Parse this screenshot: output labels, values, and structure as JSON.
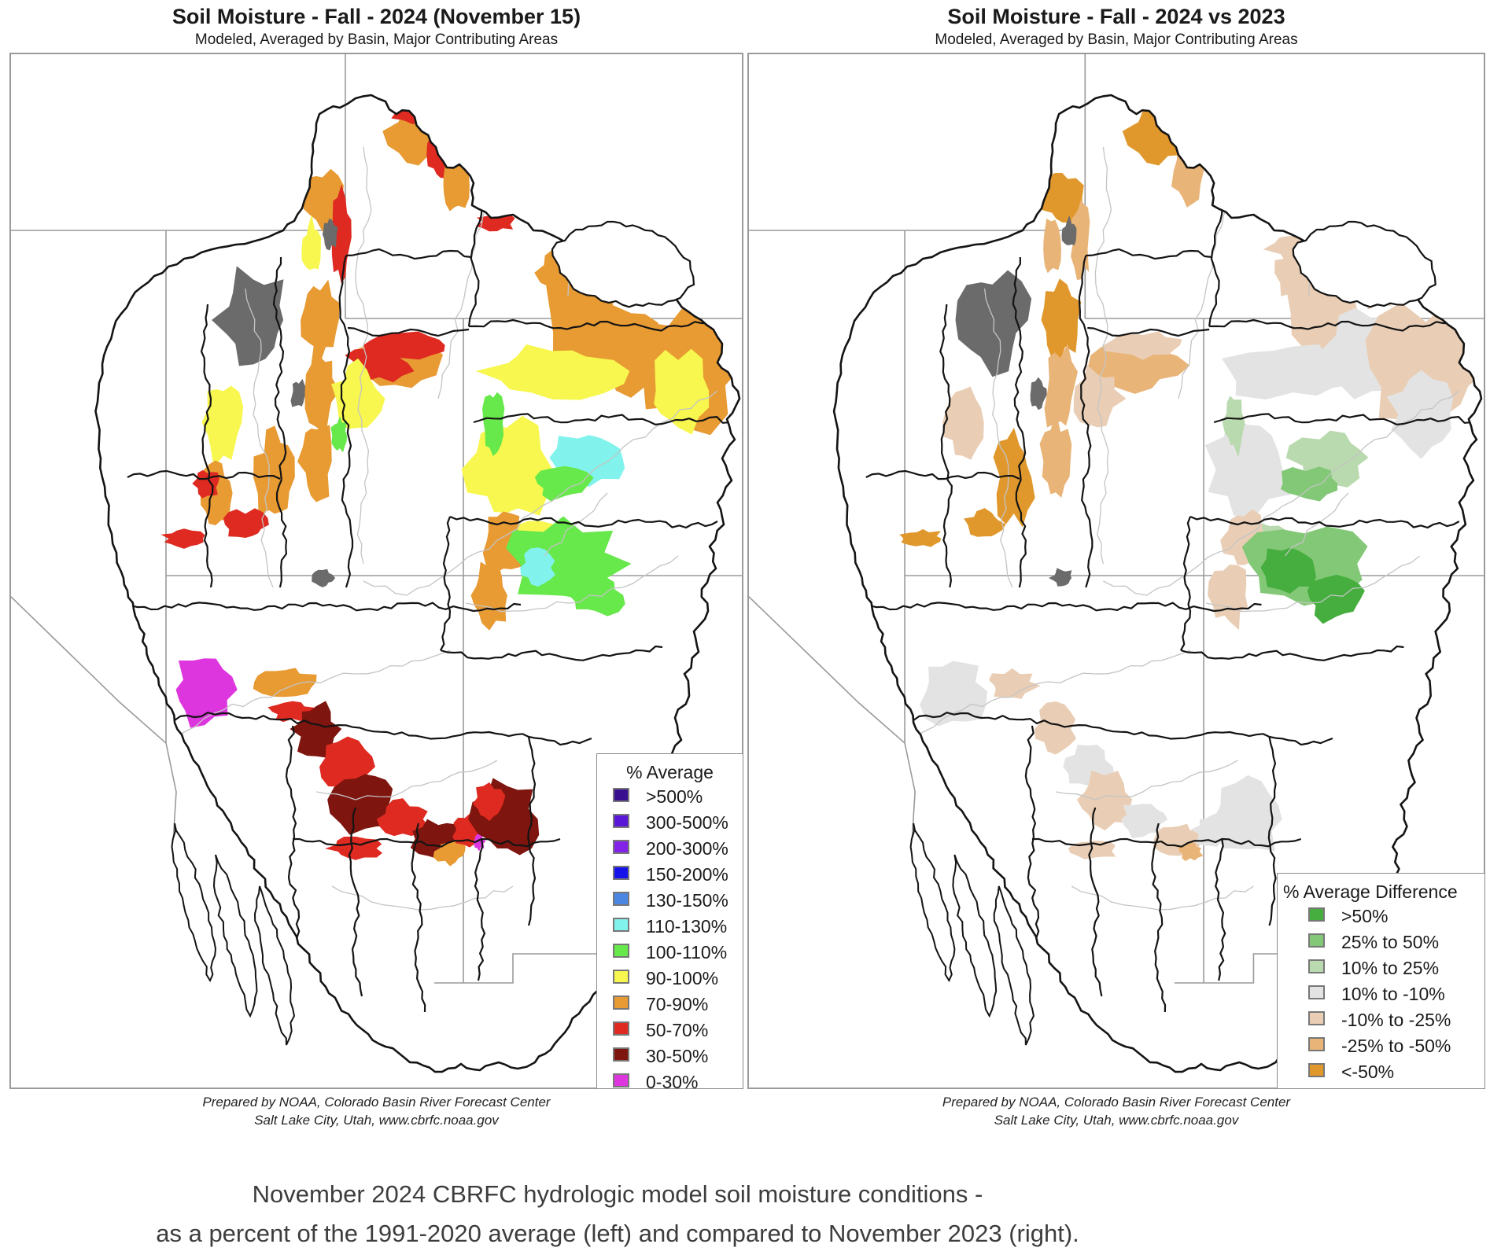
{
  "page": {
    "background": "#ffffff"
  },
  "left_map": {
    "title": "Soil Moisture - Fall - 2024 (November 15)",
    "subtitle": "Modeled, Averaged by Basin, Major Contributing Areas",
    "credit_line1": "Prepared by NOAA, Colorado Basin River Forecast Center",
    "credit_line2": "Salt Lake City, Utah, www.cbrfc.noaa.gov",
    "legend": {
      "title": "% Average",
      "items": [
        {
          "label": ">500%",
          "color": "#38108f"
        },
        {
          "label": "300-500%",
          "color": "#5a17d8"
        },
        {
          "label": "200-300%",
          "color": "#8221e8"
        },
        {
          "label": "150-200%",
          "color": "#1613ea"
        },
        {
          "label": "130-150%",
          "color": "#4b87e2"
        },
        {
          "label": "110-130%",
          "color": "#82f3ec"
        },
        {
          "label": "100-110%",
          "color": "#67e84b"
        },
        {
          "label": "90-100%",
          "color": "#f7f74f"
        },
        {
          "label": "70-90%",
          "color": "#e89a33"
        },
        {
          "label": "50-70%",
          "color": "#de2a21"
        },
        {
          "label": "30-50%",
          "color": "#7e150f"
        },
        {
          "label": "0-30%",
          "color": "#de36de"
        }
      ]
    }
  },
  "right_map": {
    "title": "Soil Moisture - Fall - 2024 vs 2023",
    "subtitle": "Modeled, Averaged by Basin, Major Contributing Areas",
    "credit_line1": "Prepared by NOAA, Colorado Basin River Forecast Center",
    "credit_line2": "Salt Lake City, Utah, www.cbrfc.noaa.gov",
    "legend": {
      "title": "% Average Difference",
      "items": [
        {
          "label": ">50%",
          "color": "#46ae3f"
        },
        {
          "label": "25% to 50%",
          "color": "#83c877"
        },
        {
          "label": "10% to 25%",
          "color": "#b9d9ae"
        },
        {
          "label": "10% to -10%",
          "color": "#e3e3e3"
        },
        {
          "label": "-10% to -25%",
          "color": "#e9ceb5"
        },
        {
          "label": "-25% to -50%",
          "color": "#e9b478"
        },
        {
          "label": "<-50%",
          "color": "#e0982d"
        }
      ]
    }
  },
  "caption": {
    "line1": "November 2024 CBRFC hydrologic model soil moisture conditions -",
    "line2": "as a percent of the 1991-2020 average (left) and compared to November 2023 (right)."
  },
  "map_colors": {
    "no_data": "#6b6b6b",
    "frame_border": "#9a9a9a",
    "state_line": "#9a9a9a",
    "basin_outline": "#141414",
    "stream_line": "#c4c4c4"
  }
}
